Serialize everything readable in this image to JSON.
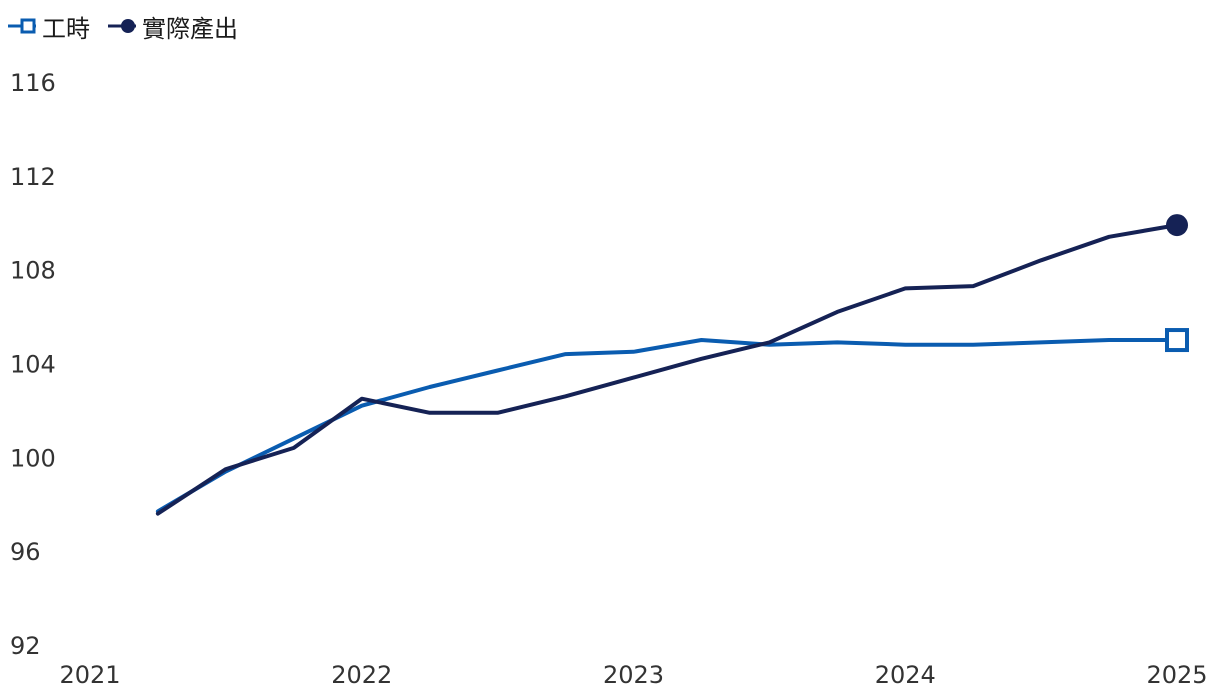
{
  "chart_data": {
    "type": "line",
    "title": "",
    "xlabel": "",
    "ylabel": "",
    "xlim": [
      2021,
      2025
    ],
    "ylim": [
      92,
      116
    ],
    "x_ticks": [
      "2021",
      "2022",
      "2023",
      "2024",
      "2025"
    ],
    "y_ticks": [
      "92",
      "96",
      "100",
      "104",
      "108",
      "112",
      "116"
    ],
    "grid": false,
    "legend_position": "top-left",
    "series": [
      {
        "name": "工時",
        "color": "#0a5cb0",
        "marker": "open-square",
        "x": [
          2021.25,
          2021.5,
          2021.75,
          2022.0,
          2022.25,
          2022.5,
          2022.75,
          2023.0,
          2023.25,
          2023.5,
          2023.75,
          2024.0,
          2024.25,
          2024.5,
          2024.75,
          2025.0
        ],
        "y": [
          97.7,
          99.4,
          100.8,
          102.2,
          103.0,
          103.7,
          104.4,
          104.5,
          105.0,
          104.8,
          104.9,
          104.8,
          104.8,
          104.9,
          105.0,
          105.0
        ]
      },
      {
        "name": "實際產出",
        "color": "#152255",
        "marker": "filled-circle",
        "x": [
          2021.25,
          2021.5,
          2021.75,
          2022.0,
          2022.25,
          2022.5,
          2022.75,
          2023.0,
          2023.25,
          2023.5,
          2023.75,
          2024.0,
          2024.25,
          2024.5,
          2024.75,
          2025.0
        ],
        "y": [
          97.6,
          99.5,
          100.4,
          102.5,
          101.9,
          101.9,
          102.6,
          103.4,
          104.2,
          104.9,
          106.2,
          107.2,
          107.3,
          108.4,
          109.4,
          109.9
        ]
      }
    ]
  }
}
